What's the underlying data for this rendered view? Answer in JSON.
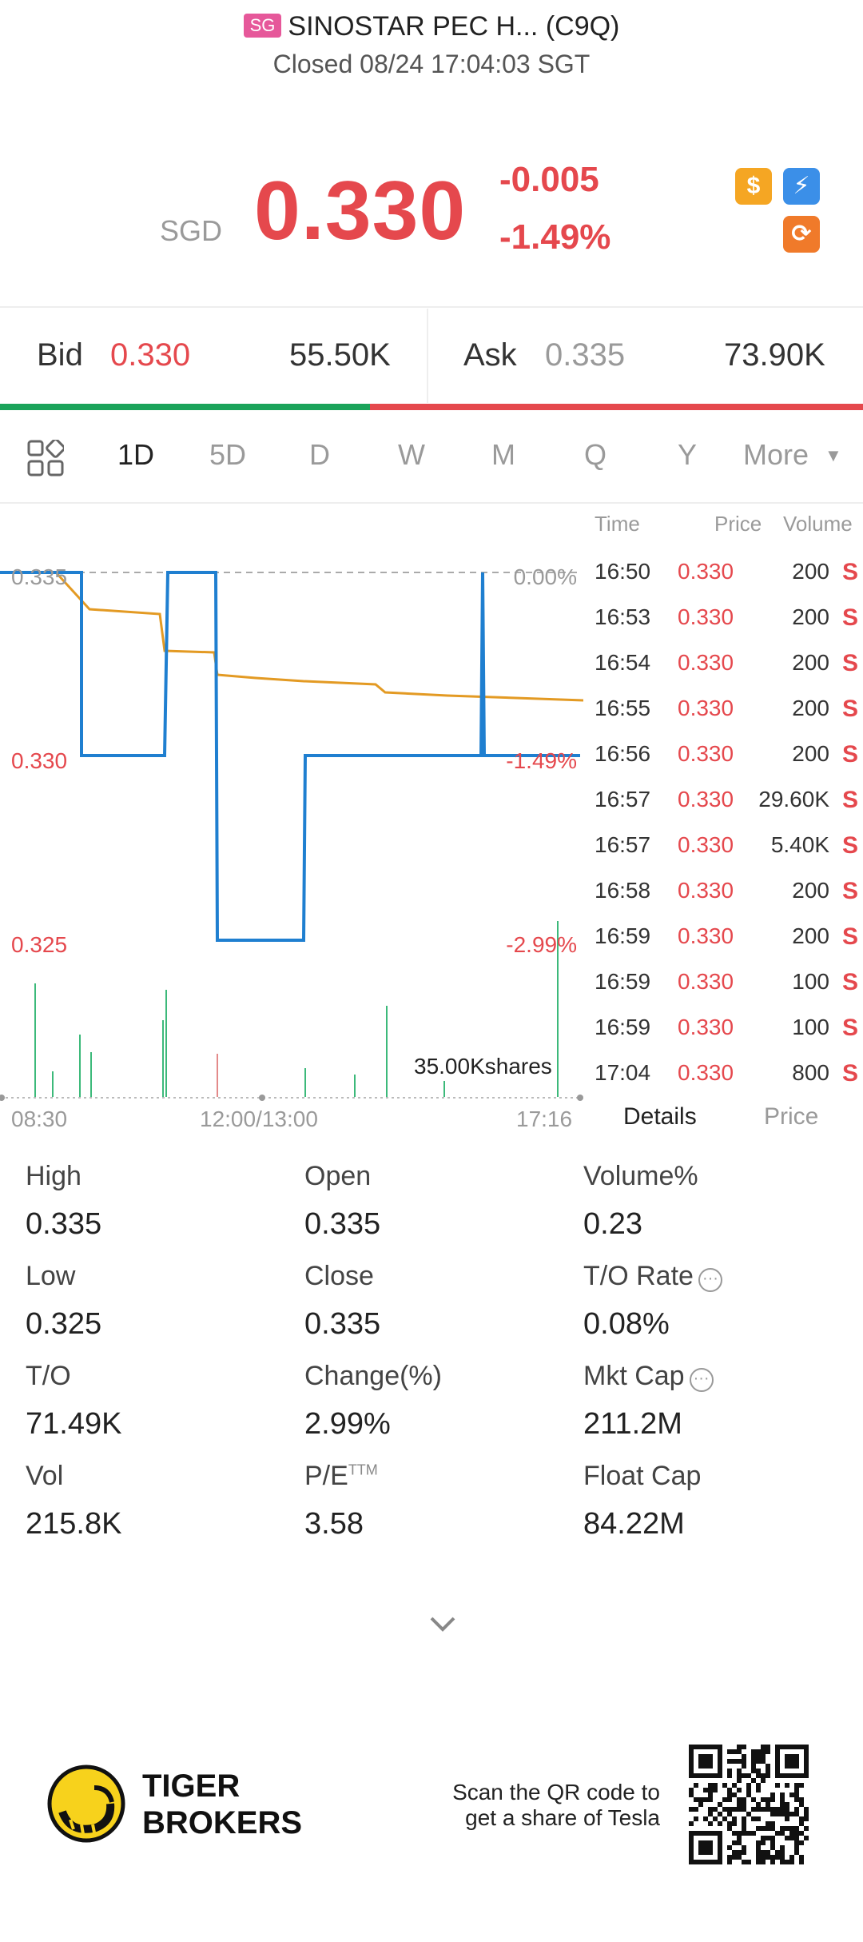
{
  "header": {
    "market_badge": "SG",
    "title": "SINOSTAR PEC H... (C9Q)",
    "status": "Closed 08/24 17:04:03 SGT"
  },
  "quote": {
    "currency": "SGD",
    "price": "0.330",
    "change": "-0.005",
    "change_pct": "-1.49%"
  },
  "bid_ask": {
    "bid_label": "Bid",
    "bid_price": "0.330",
    "bid_vol": "55.50K",
    "ask_label": "Ask",
    "ask_price": "0.335",
    "ask_vol": "73.90K"
  },
  "tabs": [
    "1D",
    "5D",
    "D",
    "W",
    "M",
    "Q",
    "Y",
    "More"
  ],
  "chart": {
    "y_labels": [
      "0.335",
      "0.330",
      "0.325"
    ],
    "pct_labels": [
      "0.00%",
      "-1.49%",
      "-2.99%"
    ],
    "x_labels": [
      "08:30",
      "12:00/13:00",
      "17:16"
    ],
    "volume_max": "35.00Kshares"
  },
  "ticks": {
    "headers": [
      "Time",
      "Price",
      "Volume"
    ],
    "rows": [
      {
        "time": "16:50",
        "price": "0.330",
        "vol": "200",
        "flag": "S"
      },
      {
        "time": "16:53",
        "price": "0.330",
        "vol": "200",
        "flag": "S"
      },
      {
        "time": "16:54",
        "price": "0.330",
        "vol": "200",
        "flag": "S"
      },
      {
        "time": "16:55",
        "price": "0.330",
        "vol": "200",
        "flag": "S"
      },
      {
        "time": "16:56",
        "price": "0.330",
        "vol": "200",
        "flag": "S"
      },
      {
        "time": "16:57",
        "price": "0.330",
        "vol": "29.60K",
        "flag": "S"
      },
      {
        "time": "16:57",
        "price": "0.330",
        "vol": "5.40K",
        "flag": "S"
      },
      {
        "time": "16:58",
        "price": "0.330",
        "vol": "200",
        "flag": "S"
      },
      {
        "time": "16:59",
        "price": "0.330",
        "vol": "200",
        "flag": "S"
      },
      {
        "time": "16:59",
        "price": "0.330",
        "vol": "100",
        "flag": "S"
      },
      {
        "time": "16:59",
        "price": "0.330",
        "vol": "100",
        "flag": "S"
      },
      {
        "time": "17:04",
        "price": "0.330",
        "vol": "800",
        "flag": "S"
      }
    ],
    "tab_details": "Details",
    "tab_price": "Price"
  },
  "stats": {
    "col1": [
      {
        "label": "High",
        "value": "0.335"
      },
      {
        "label": "Low",
        "value": "0.325"
      },
      {
        "label": "T/O",
        "value": "71.49K"
      },
      {
        "label": "Vol",
        "value": "215.8K"
      }
    ],
    "col2": [
      {
        "label": "Open",
        "value": "0.335"
      },
      {
        "label": "Close",
        "value": "0.335"
      },
      {
        "label": "Change(%)",
        "value": "2.99%"
      },
      {
        "label": "P/E",
        "sup": "TTM",
        "value": "3.58"
      }
    ],
    "col3": [
      {
        "label": "Volume%",
        "value": "0.23"
      },
      {
        "label": "T/O Rate",
        "value": "0.08%"
      },
      {
        "label": "Mkt Cap",
        "value": "211.2M"
      },
      {
        "label": "Float Cap",
        "value": "84.22M"
      }
    ]
  },
  "footer": {
    "brand_line1": "TIGER",
    "brand_line2": "BROKERS",
    "qr_line1": "Scan the QR code to",
    "qr_line2": "get a share of Tesla"
  },
  "chart_data": {
    "type": "line",
    "x_range": [
      "08:30",
      "17:16"
    ],
    "ylim": [
      0.325,
      0.335
    ],
    "series": [
      {
        "color": "#1f7fd0",
        "values": [
          0.335,
          0.335,
          0.33,
          0.33,
          0.335,
          0.335,
          0.325,
          0.325,
          0.33,
          0.33,
          0.335,
          0.33,
          0.33
        ]
      },
      {
        "color": "#e39a23",
        "values": [
          0.335,
          0.3345,
          0.3344,
          0.334,
          0.3338,
          0.3334,
          0.3333,
          0.3332,
          0.3331,
          0.3329,
          0.3328,
          0.3327,
          0.3326
        ]
      }
    ]
  }
}
